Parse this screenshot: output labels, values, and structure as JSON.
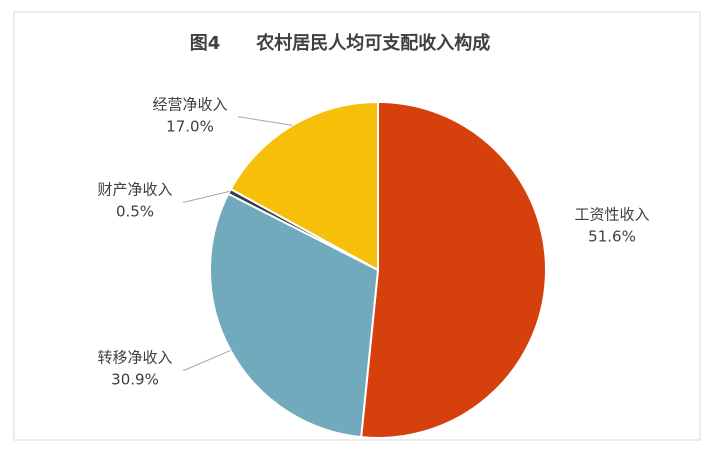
{
  "chart_data": {
    "type": "pie",
    "title": "图4　　农村居民人均可支配收入构成",
    "categories": [
      "工资性收入",
      "转移净收入",
      "财产净收入",
      "经营净收入"
    ],
    "values": [
      51.6,
      30.9,
      0.5,
      17.0
    ],
    "value_labels": [
      "51.6%",
      "30.9%",
      "0.5%",
      "17.0%"
    ],
    "colors": [
      "#d6400c",
      "#71a9bd",
      "#3b3d4a",
      "#f5bf0a"
    ]
  }
}
